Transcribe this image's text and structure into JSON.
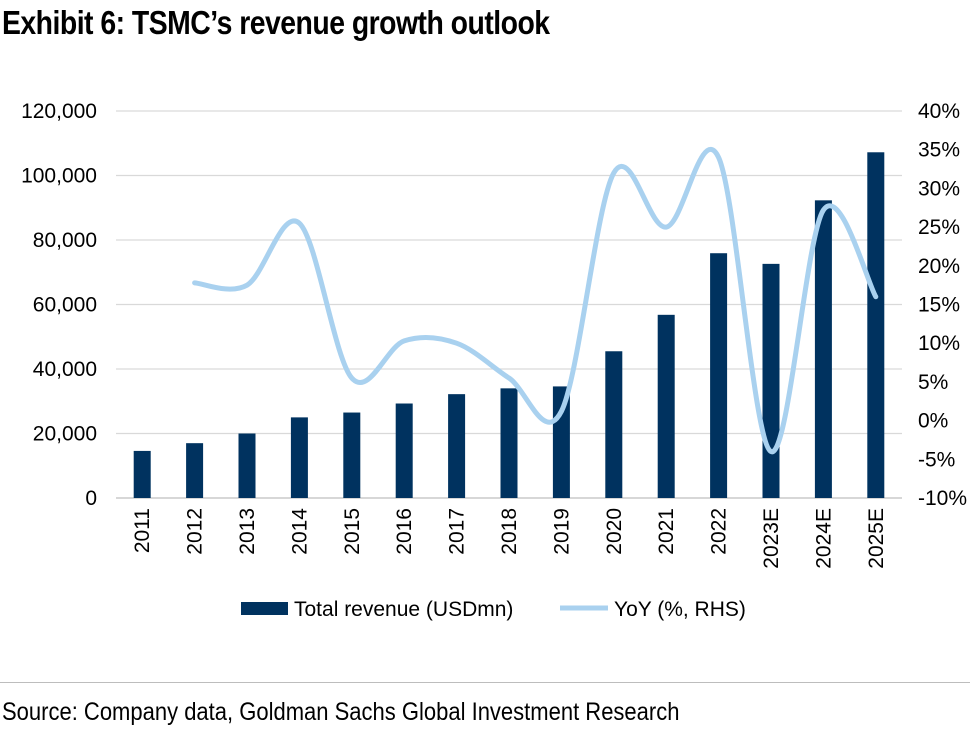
{
  "header": {
    "title": "Exhibit 6: TSMC’s revenue growth outlook"
  },
  "footer": {
    "source": "Source: Company data, Goldman Sachs Global Investment Research"
  },
  "colors": {
    "bar": "#00325F",
    "line": "#A9D1EF",
    "grid": "#D9D9D9"
  },
  "chart_data": {
    "type": "bar",
    "title": "",
    "categories": [
      "2011",
      "2012",
      "2013",
      "2014",
      "2015",
      "2016",
      "2017",
      "2018",
      "2019",
      "2020",
      "2021",
      "2022",
      "2023E",
      "2024E",
      "2025E"
    ],
    "series": [
      {
        "name": "Total revenue (USDmn)",
        "type": "bar",
        "axis": "left",
        "values": [
          14600,
          17000,
          20000,
          25000,
          26500,
          29300,
          32200,
          34000,
          34600,
          45500,
          56800,
          75900,
          72600,
          92300,
          107200
        ]
      },
      {
        "name": "YoY (%, RHS)",
        "type": "line",
        "axis": "right",
        "values": [
          null,
          17.8,
          17.5,
          25.5,
          5.5,
          10.3,
          10.0,
          5.5,
          1.2,
          32.0,
          25.0,
          34.0,
          -4.0,
          27.2,
          16.0
        ]
      }
    ],
    "y_left": {
      "min": 0,
      "max": 120000,
      "ticks": [
        "0",
        "20,000",
        "40,000",
        "60,000",
        "80,000",
        "100,000",
        "120,000"
      ]
    },
    "y_right": {
      "min": -10,
      "max": 40,
      "ticks": [
        "-10%",
        "-5%",
        "0%",
        "5%",
        "10%",
        "15%",
        "20%",
        "25%",
        "30%",
        "35%",
        "40%"
      ]
    },
    "grid": true,
    "legend": "bottom"
  }
}
